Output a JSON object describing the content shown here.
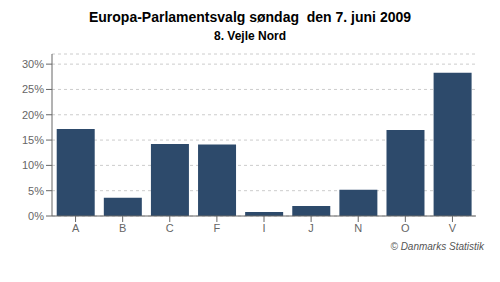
{
  "chart_data": {
    "type": "bar",
    "title": "Europa-Parlamentsvalg søndag  den 7. juni 2009",
    "subtitle": "8. Vejle Nord",
    "categories": [
      "A",
      "B",
      "C",
      "F",
      "I",
      "J",
      "N",
      "O",
      "V"
    ],
    "values": [
      17.2,
      3.6,
      14.2,
      14.1,
      0.8,
      2.0,
      5.2,
      17.0,
      28.3
    ],
    "color": "#2d4a6b",
    "ylim": [
      0,
      32
    ],
    "yticks": [
      {
        "value": 0,
        "label": "0%"
      },
      {
        "value": 5,
        "label": "5%"
      },
      {
        "value": 10,
        "label": "10%"
      },
      {
        "value": 15,
        "label": "15%"
      },
      {
        "value": 20,
        "label": "20%"
      },
      {
        "value": 25,
        "label": "25%"
      },
      {
        "value": 30,
        "label": "30%"
      }
    ],
    "grid": true,
    "annotations": [
      "© Danmarks Statistik"
    ]
  }
}
